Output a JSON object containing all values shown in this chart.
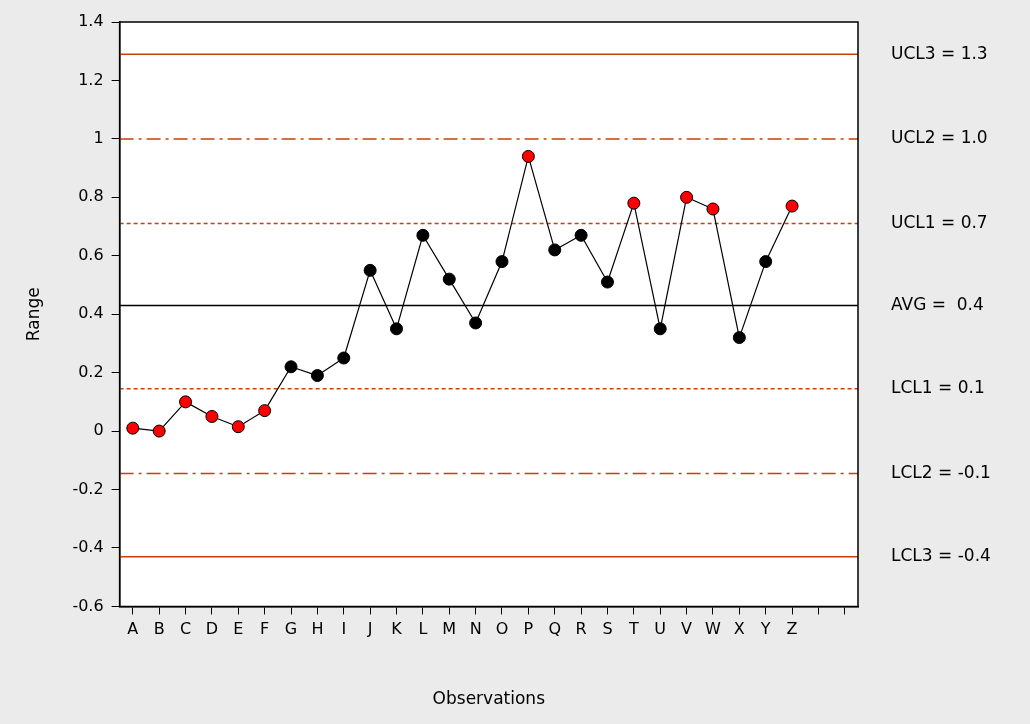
{
  "chart_data": {
    "type": "line",
    "xlabel": "Observations",
    "ylabel": "Range",
    "categories": [
      "A",
      "B",
      "C",
      "D",
      "E",
      "F",
      "G",
      "H",
      "I",
      "J",
      "K",
      "L",
      "M",
      "N",
      "O",
      "P",
      "Q",
      "R",
      "S",
      "T",
      "U",
      "V",
      "W",
      "X",
      "Y",
      "Z",
      null,
      null
    ],
    "series": [
      {
        "color": "#000000",
        "values": [
          0.01,
          0.0,
          0.1,
          0.05,
          0.015,
          0.07,
          0.22,
          0.19,
          0.25,
          0.55,
          0.35,
          0.67,
          0.52,
          0.37,
          0.58,
          0.94,
          0.62,
          0.67,
          0.51,
          0.78,
          0.35,
          0.8,
          0.76,
          0.32,
          0.58,
          0.77,
          null,
          null
        ],
        "colors": [
          "#ff0000",
          "#ff0000",
          "#ff0000",
          "#ff0000",
          "#ff0000",
          "#ff0000",
          "#000000",
          "#000000",
          "#000000",
          "#000000",
          "#000000",
          "#000000",
          "#000000",
          "#000000",
          "#000000",
          "#ff0000",
          "#000000",
          "#000000",
          "#000000",
          "#ff0000",
          "#000000",
          "#ff0000",
          "#ff0000",
          "#000000",
          "#000000",
          "#ff0000",
          "#000000",
          "#000000"
        ]
      }
    ],
    "marker": "circle",
    "line_style": "solid",
    "grid": false,
    "legend": false,
    "ylim": [
      -0.6,
      1.4
    ],
    "yticks": [
      -0.6,
      -0.4,
      -0.2,
      0,
      0.2,
      0.4,
      0.6,
      0.8,
      1,
      1.2,
      1.4
    ],
    "ref_lines": [
      {
        "axis": "y",
        "value": 1.29,
        "label": "UCL3 = 1.3",
        "color": "#c4410c",
        "line_style": "solid"
      },
      {
        "axis": "y",
        "value": 1.0,
        "label": "UCL2 = 1.0",
        "color": "#c4410c",
        "line_style": "dashed"
      },
      {
        "axis": "y",
        "value": 0.71,
        "label": "UCL1 = 0.7",
        "color": "#c4410c",
        "line_style": "dotted"
      },
      {
        "axis": "y",
        "value": 0.43,
        "label": "AVG =  0.4",
        "color": "#000000",
        "line_style": "solid"
      },
      {
        "axis": "y",
        "value": 0.145,
        "label": "LCL1 = 0.1",
        "color": "#c4410c",
        "line_style": "dotted"
      },
      {
        "axis": "y",
        "value": -0.145,
        "label": "LCL2 = -0.1",
        "color": "#c4410c",
        "line_style": "dashed"
      },
      {
        "axis": "y",
        "value": -0.43,
        "label": "LCL3 = -0.4",
        "color": "#c4410c",
        "line_style": "solid"
      }
    ]
  }
}
